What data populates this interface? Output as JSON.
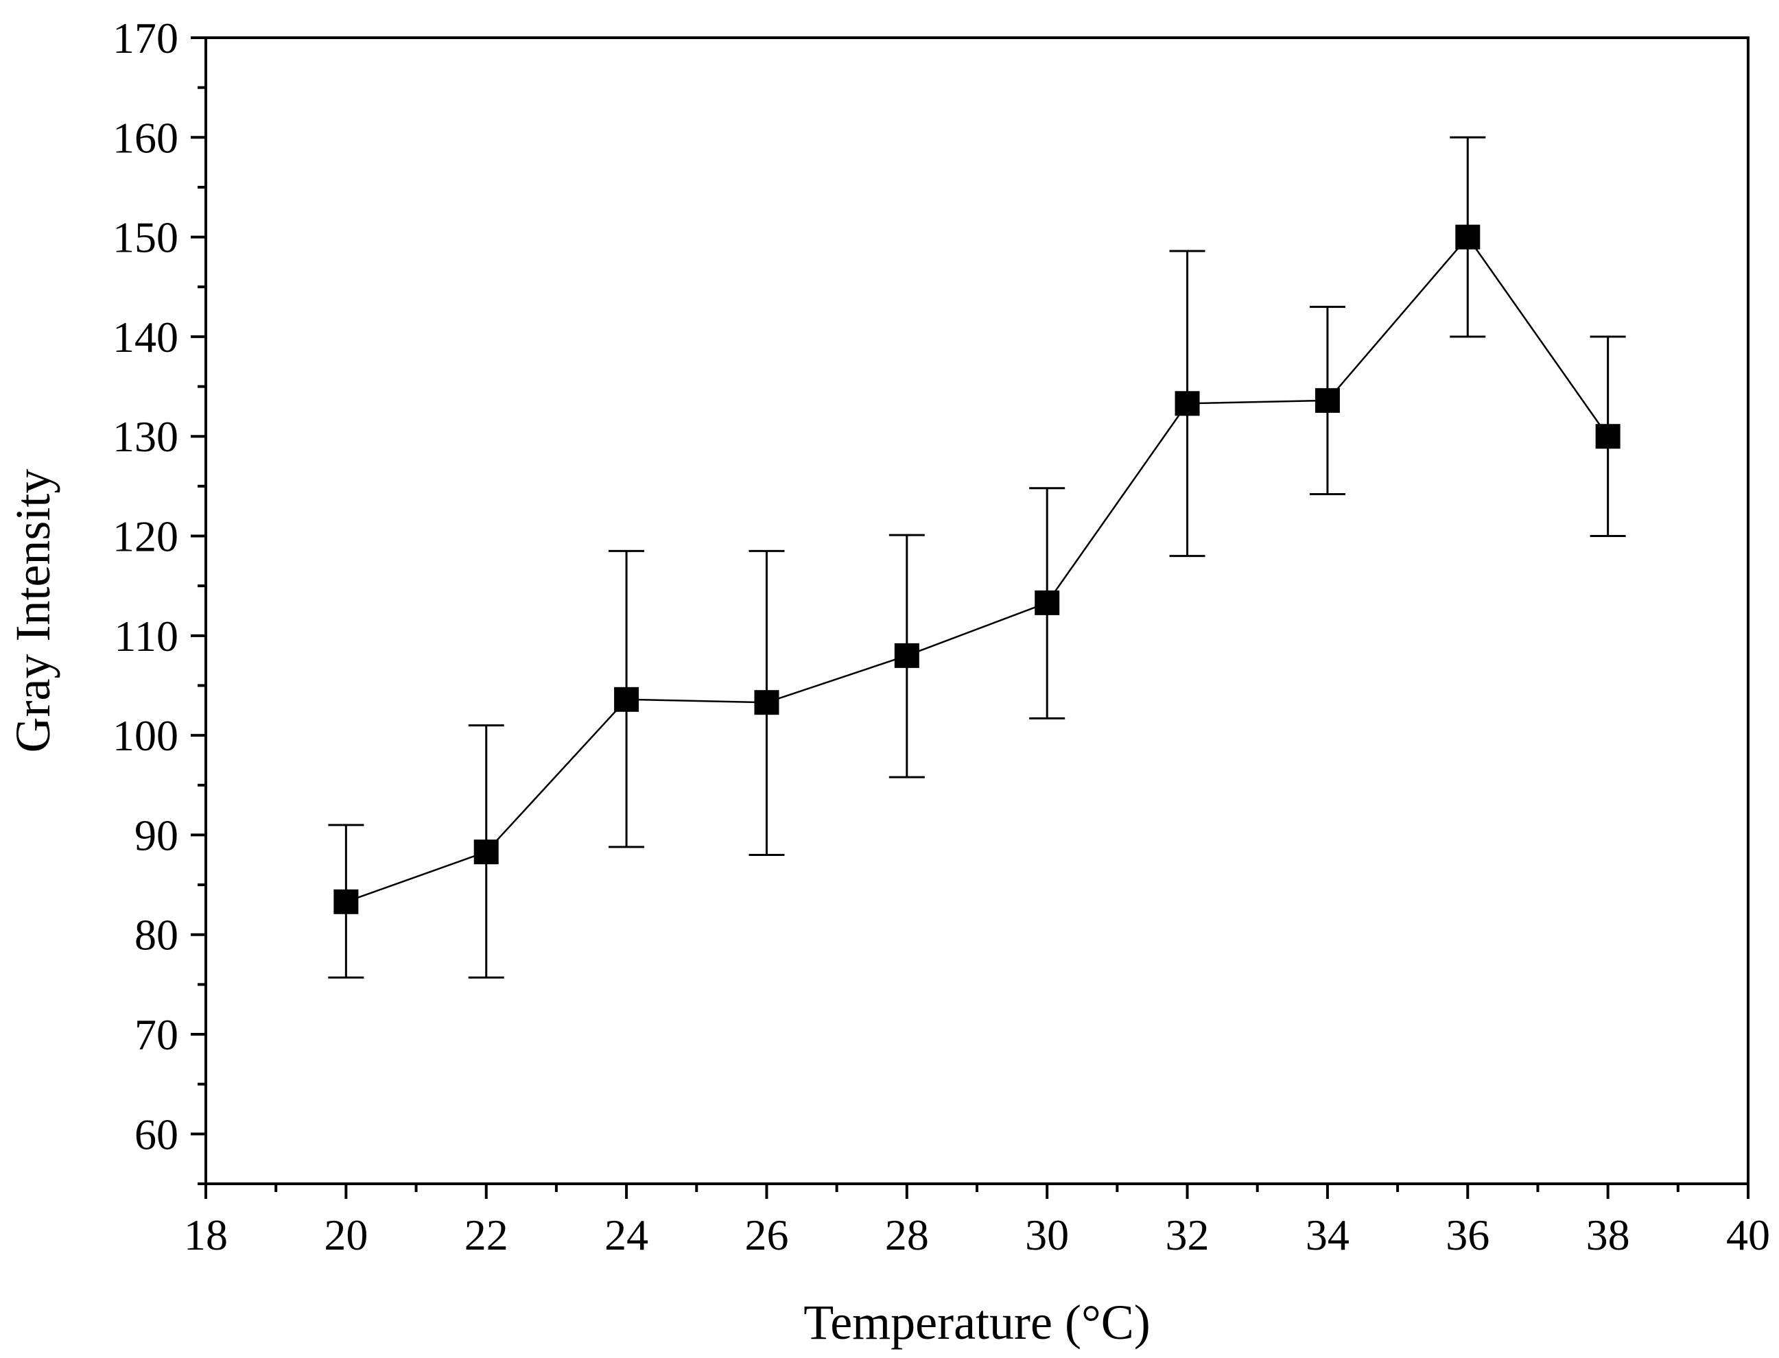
{
  "chart_data": {
    "type": "line",
    "title": "",
    "xlabel": "Temperature (°C)",
    "ylabel": "Gray Intensity",
    "xlim": [
      18,
      40
    ],
    "ylim": [
      55,
      170
    ],
    "xticks": [
      18,
      20,
      22,
      24,
      26,
      28,
      30,
      32,
      34,
      36,
      38,
      40
    ],
    "yticks": [
      60,
      70,
      80,
      90,
      100,
      110,
      120,
      130,
      140,
      150,
      160,
      170
    ],
    "grid": false,
    "legend": "none",
    "marker": "square",
    "colors": {
      "line": "#000000",
      "marker": "#000000",
      "axis": "#000000"
    },
    "series": [
      {
        "x": [
          20,
          22,
          24,
          26,
          28,
          30,
          32,
          34,
          36,
          38
        ],
        "y": [
          83.3,
          88.3,
          103.6,
          103.3,
          108.0,
          113.3,
          133.3,
          133.6,
          150.0,
          130.0
        ],
        "err_low": [
          75.7,
          75.7,
          88.8,
          88.0,
          95.8,
          101.7,
          118.0,
          124.2,
          140.0,
          120.0
        ],
        "err_high": [
          91.0,
          101.0,
          118.5,
          118.5,
          120.1,
          124.8,
          148.6,
          143.0,
          160.0,
          140.0
        ]
      }
    ]
  }
}
